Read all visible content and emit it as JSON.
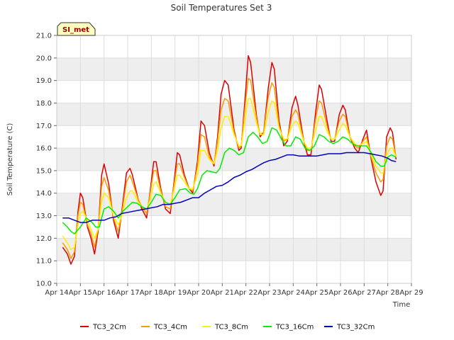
{
  "chart_data": {
    "type": "line",
    "title": "Soil Temperatures Set 3",
    "xlabel": "Time",
    "ylabel": "Soil Temperature (C)",
    "badge": "SI_met",
    "x_ticks": [
      "Apr 14",
      "Apr 15",
      "Apr 16",
      "Apr 17",
      "Apr 18",
      "Apr 19",
      "Apr 20",
      "Apr 21",
      "Apr 22",
      "Apr 23",
      "Apr 24",
      "Apr 25",
      "Apr 26",
      "Apr 27",
      "Apr 28",
      "Apr 29"
    ],
    "xlim": [
      14,
      29
    ],
    "y_ticks": [
      "10.0",
      "11.0",
      "12.0",
      "13.0",
      "14.0",
      "15.0",
      "16.0",
      "17.0",
      "18.0",
      "19.0",
      "20.0",
      "21.0"
    ],
    "ylim": [
      10,
      21
    ],
    "grid": true,
    "legend_position": "bottom",
    "colors": {
      "TC3_2Cm": "#dd0000",
      "TC3_4Cm": "#ff9900",
      "TC3_8Cm": "#ffee00",
      "TC3_16Cm": "#00ee00",
      "TC3_32Cm": "#0000bb",
      "band": "#eeeeee",
      "badge_bg": "#ffffc0",
      "badge_text": "#990000"
    },
    "series": [
      {
        "name": "TC3_2Cm",
        "x": [
          14.25,
          14.45,
          14.6,
          14.75,
          14.9,
          15.0,
          15.1,
          15.3,
          15.45,
          15.6,
          15.75,
          15.9,
          16.0,
          16.2,
          16.4,
          16.6,
          16.75,
          16.95,
          17.1,
          17.2,
          17.45,
          17.6,
          17.8,
          17.95,
          18.1,
          18.2,
          18.4,
          18.6,
          18.8,
          18.95,
          19.1,
          19.2,
          19.4,
          19.6,
          19.75,
          19.95,
          20.1,
          20.25,
          20.45,
          20.65,
          20.8,
          20.95,
          21.1,
          21.25,
          21.5,
          21.7,
          21.8,
          22.0,
          22.1,
          22.2,
          22.45,
          22.6,
          22.75,
          22.95,
          23.1,
          23.2,
          23.4,
          23.6,
          23.75,
          23.95,
          24.1,
          24.2,
          24.45,
          24.6,
          24.75,
          24.95,
          25.1,
          25.2,
          25.45,
          25.6,
          25.75,
          25.95,
          26.1,
          26.2,
          26.4,
          26.6,
          26.75,
          26.95,
          27.1,
          27.3,
          27.5,
          27.7,
          27.8,
          27.95,
          28.1,
          28.2,
          28.35
        ],
        "values": [
          11.6,
          11.3,
          10.85,
          11.2,
          13.2,
          14.0,
          13.8,
          12.5,
          12.0,
          11.3,
          12.3,
          14.8,
          15.3,
          14.4,
          12.8,
          12.0,
          13.2,
          14.9,
          15.1,
          14.8,
          13.7,
          13.3,
          12.9,
          14.1,
          15.4,
          15.4,
          14.2,
          13.3,
          13.1,
          14.4,
          15.8,
          15.7,
          14.8,
          14.2,
          14.0,
          15.4,
          17.2,
          17.0,
          15.8,
          15.2,
          16.5,
          18.4,
          19.0,
          18.8,
          16.8,
          15.9,
          16.0,
          18.7,
          20.1,
          19.8,
          17.4,
          16.5,
          16.7,
          18.7,
          19.8,
          19.5,
          17.2,
          16.1,
          16.3,
          17.8,
          18.3,
          17.9,
          16.3,
          15.7,
          15.7,
          17.6,
          18.8,
          18.6,
          17.1,
          16.3,
          16.3,
          17.5,
          17.9,
          17.7,
          16.5,
          16.0,
          15.8,
          16.4,
          16.8,
          15.5,
          14.5,
          13.9,
          14.1,
          16.5,
          16.9,
          16.7,
          15.5
        ]
      },
      {
        "name": "TC3_4Cm",
        "x": [
          14.25,
          14.45,
          14.6,
          14.75,
          14.9,
          15.0,
          15.1,
          15.3,
          15.45,
          15.6,
          15.75,
          15.9,
          16.0,
          16.2,
          16.4,
          16.6,
          16.75,
          16.95,
          17.1,
          17.2,
          17.45,
          17.6,
          17.8,
          17.95,
          18.1,
          18.2,
          18.4,
          18.6,
          18.8,
          18.95,
          19.1,
          19.2,
          19.4,
          19.6,
          19.75,
          19.95,
          20.1,
          20.25,
          20.45,
          20.65,
          20.8,
          20.95,
          21.1,
          21.25,
          21.5,
          21.7,
          21.8,
          22.0,
          22.1,
          22.2,
          22.45,
          22.6,
          22.75,
          22.95,
          23.1,
          23.2,
          23.4,
          23.6,
          23.75,
          23.95,
          24.1,
          24.2,
          24.45,
          24.6,
          24.75,
          24.95,
          25.1,
          25.2,
          25.45,
          25.6,
          25.75,
          25.95,
          26.1,
          26.2,
          26.4,
          26.6,
          26.75,
          26.95,
          27.1,
          27.3,
          27.5,
          27.7,
          27.8,
          27.95,
          28.1,
          28.2,
          28.35
        ],
        "values": [
          11.8,
          11.5,
          11.1,
          11.4,
          13.0,
          13.6,
          13.5,
          12.6,
          12.2,
          11.6,
          12.4,
          14.3,
          14.7,
          14.1,
          12.9,
          12.3,
          13.1,
          14.5,
          14.8,
          14.5,
          13.7,
          13.4,
          13.1,
          14.0,
          15.0,
          15.0,
          14.1,
          13.4,
          13.3,
          14.3,
          15.3,
          15.3,
          14.7,
          14.2,
          14.1,
          15.2,
          16.6,
          16.5,
          15.6,
          15.3,
          16.3,
          17.7,
          18.2,
          18.1,
          16.7,
          16.0,
          16.1,
          18.2,
          19.1,
          19.0,
          17.3,
          16.6,
          16.7,
          18.3,
          18.9,
          18.7,
          17.0,
          16.3,
          16.4,
          17.4,
          17.7,
          17.5,
          16.3,
          15.9,
          15.9,
          17.3,
          18.1,
          18.0,
          16.9,
          16.4,
          16.4,
          17.2,
          17.5,
          17.4,
          16.5,
          16.1,
          16.0,
          16.3,
          16.5,
          15.6,
          14.9,
          14.5,
          14.6,
          16.1,
          16.5,
          16.4,
          15.6
        ]
      },
      {
        "name": "TC3_8Cm",
        "x": [
          14.25,
          14.45,
          14.6,
          14.75,
          14.9,
          15.0,
          15.1,
          15.3,
          15.45,
          15.6,
          15.75,
          15.9,
          16.0,
          16.2,
          16.4,
          16.6,
          16.75,
          16.95,
          17.1,
          17.2,
          17.45,
          17.6,
          17.8,
          17.95,
          18.1,
          18.2,
          18.4,
          18.6,
          18.8,
          18.95,
          19.1,
          19.2,
          19.4,
          19.6,
          19.75,
          19.95,
          20.1,
          20.25,
          20.45,
          20.65,
          20.8,
          20.95,
          21.1,
          21.25,
          21.5,
          21.7,
          21.8,
          22.0,
          22.1,
          22.2,
          22.45,
          22.6,
          22.75,
          22.95,
          23.1,
          23.2,
          23.4,
          23.6,
          23.75,
          23.95,
          24.1,
          24.2,
          24.45,
          24.6,
          24.75,
          24.95,
          25.1,
          25.2,
          25.45,
          25.6,
          25.75,
          25.95,
          26.1,
          26.2,
          26.4,
          26.6,
          26.75,
          26.95,
          27.1,
          27.3,
          27.5,
          27.7,
          27.8,
          27.95,
          28.1,
          28.2,
          28.35
        ],
        "values": [
          12.1,
          11.8,
          11.5,
          11.6,
          12.6,
          13.1,
          13.2,
          12.8,
          12.4,
          12.0,
          12.4,
          13.6,
          14.0,
          13.8,
          13.0,
          12.6,
          13.0,
          13.8,
          14.1,
          14.1,
          13.6,
          13.4,
          13.3,
          13.7,
          14.4,
          14.5,
          14.0,
          13.6,
          13.5,
          14.1,
          14.8,
          14.8,
          14.5,
          14.2,
          14.2,
          14.8,
          15.9,
          15.9,
          15.5,
          15.3,
          15.9,
          16.9,
          17.4,
          17.4,
          16.6,
          16.1,
          16.1,
          17.5,
          18.2,
          18.2,
          17.1,
          16.6,
          16.6,
          17.6,
          18.1,
          18.0,
          16.9,
          16.4,
          16.4,
          17.0,
          17.2,
          17.1,
          16.3,
          16.0,
          16.0,
          16.8,
          17.4,
          17.4,
          16.7,
          16.4,
          16.4,
          16.8,
          17.1,
          17.0,
          16.5,
          16.2,
          16.1,
          16.2,
          16.3,
          15.7,
          15.2,
          14.9,
          14.9,
          15.7,
          16.0,
          16.0,
          15.6
        ]
      },
      {
        "name": "TC3_16Cm",
        "x": [
          14.25,
          14.45,
          14.6,
          14.75,
          15.0,
          15.25,
          15.5,
          15.65,
          15.8,
          16.0,
          16.2,
          16.4,
          16.6,
          16.8,
          17.0,
          17.2,
          17.4,
          17.6,
          17.8,
          18.0,
          18.2,
          18.4,
          18.6,
          18.8,
          19.0,
          19.2,
          19.45,
          19.65,
          19.8,
          19.95,
          20.15,
          20.35,
          20.55,
          20.75,
          20.9,
          21.1,
          21.3,
          21.5,
          21.7,
          21.9,
          22.1,
          22.3,
          22.5,
          22.7,
          22.9,
          23.1,
          23.3,
          23.5,
          23.7,
          23.9,
          24.1,
          24.3,
          24.5,
          24.7,
          24.9,
          25.1,
          25.3,
          25.5,
          25.7,
          25.9,
          26.1,
          26.3,
          26.5,
          26.7,
          26.9,
          27.1,
          27.3,
          27.5,
          27.7,
          27.85,
          28.0,
          28.15,
          28.35
        ],
        "values": [
          12.7,
          12.5,
          12.3,
          12.2,
          12.5,
          12.9,
          12.7,
          12.5,
          12.5,
          13.3,
          13.4,
          13.2,
          12.9,
          13.2,
          13.4,
          13.6,
          13.55,
          13.4,
          13.3,
          13.6,
          13.95,
          13.9,
          13.6,
          13.5,
          13.8,
          14.15,
          14.2,
          14.0,
          13.95,
          14.2,
          14.8,
          15.0,
          14.95,
          14.9,
          15.1,
          15.8,
          16.0,
          15.9,
          15.7,
          15.8,
          16.5,
          16.7,
          16.5,
          16.2,
          16.3,
          16.9,
          16.8,
          16.4,
          16.1,
          16.1,
          16.5,
          16.4,
          16.0,
          15.9,
          16.1,
          16.6,
          16.5,
          16.3,
          16.2,
          16.3,
          16.5,
          16.4,
          16.2,
          16.1,
          16.1,
          16.1,
          15.8,
          15.4,
          15.2,
          15.2,
          15.6,
          15.7,
          15.6
        ]
      },
      {
        "name": "TC3_32Cm",
        "x": [
          14.25,
          14.5,
          14.75,
          15.0,
          15.25,
          15.5,
          15.75,
          16.0,
          16.25,
          16.5,
          16.75,
          17.0,
          17.25,
          17.5,
          17.75,
          18.0,
          18.25,
          18.5,
          18.75,
          19.0,
          19.25,
          19.5,
          19.75,
          20.0,
          20.25,
          20.5,
          20.75,
          21.0,
          21.25,
          21.5,
          21.75,
          22.0,
          22.25,
          22.5,
          22.75,
          23.0,
          23.25,
          23.5,
          23.75,
          24.0,
          24.25,
          24.5,
          24.75,
          25.0,
          25.25,
          25.5,
          25.75,
          26.0,
          26.25,
          26.5,
          26.75,
          27.0,
          27.25,
          27.5,
          27.75,
          28.0,
          28.15,
          28.35
        ],
        "values": [
          12.9,
          12.9,
          12.8,
          12.7,
          12.7,
          12.8,
          12.8,
          12.8,
          12.9,
          12.95,
          13.1,
          13.15,
          13.2,
          13.25,
          13.3,
          13.35,
          13.4,
          13.5,
          13.5,
          13.55,
          13.6,
          13.7,
          13.8,
          13.8,
          14.0,
          14.15,
          14.3,
          14.35,
          14.5,
          14.7,
          14.8,
          14.95,
          15.05,
          15.2,
          15.35,
          15.45,
          15.5,
          15.6,
          15.7,
          15.7,
          15.65,
          15.65,
          15.65,
          15.65,
          15.7,
          15.75,
          15.75,
          15.75,
          15.8,
          15.8,
          15.8,
          15.8,
          15.75,
          15.7,
          15.65,
          15.55,
          15.45,
          15.4
        ]
      }
    ]
  }
}
